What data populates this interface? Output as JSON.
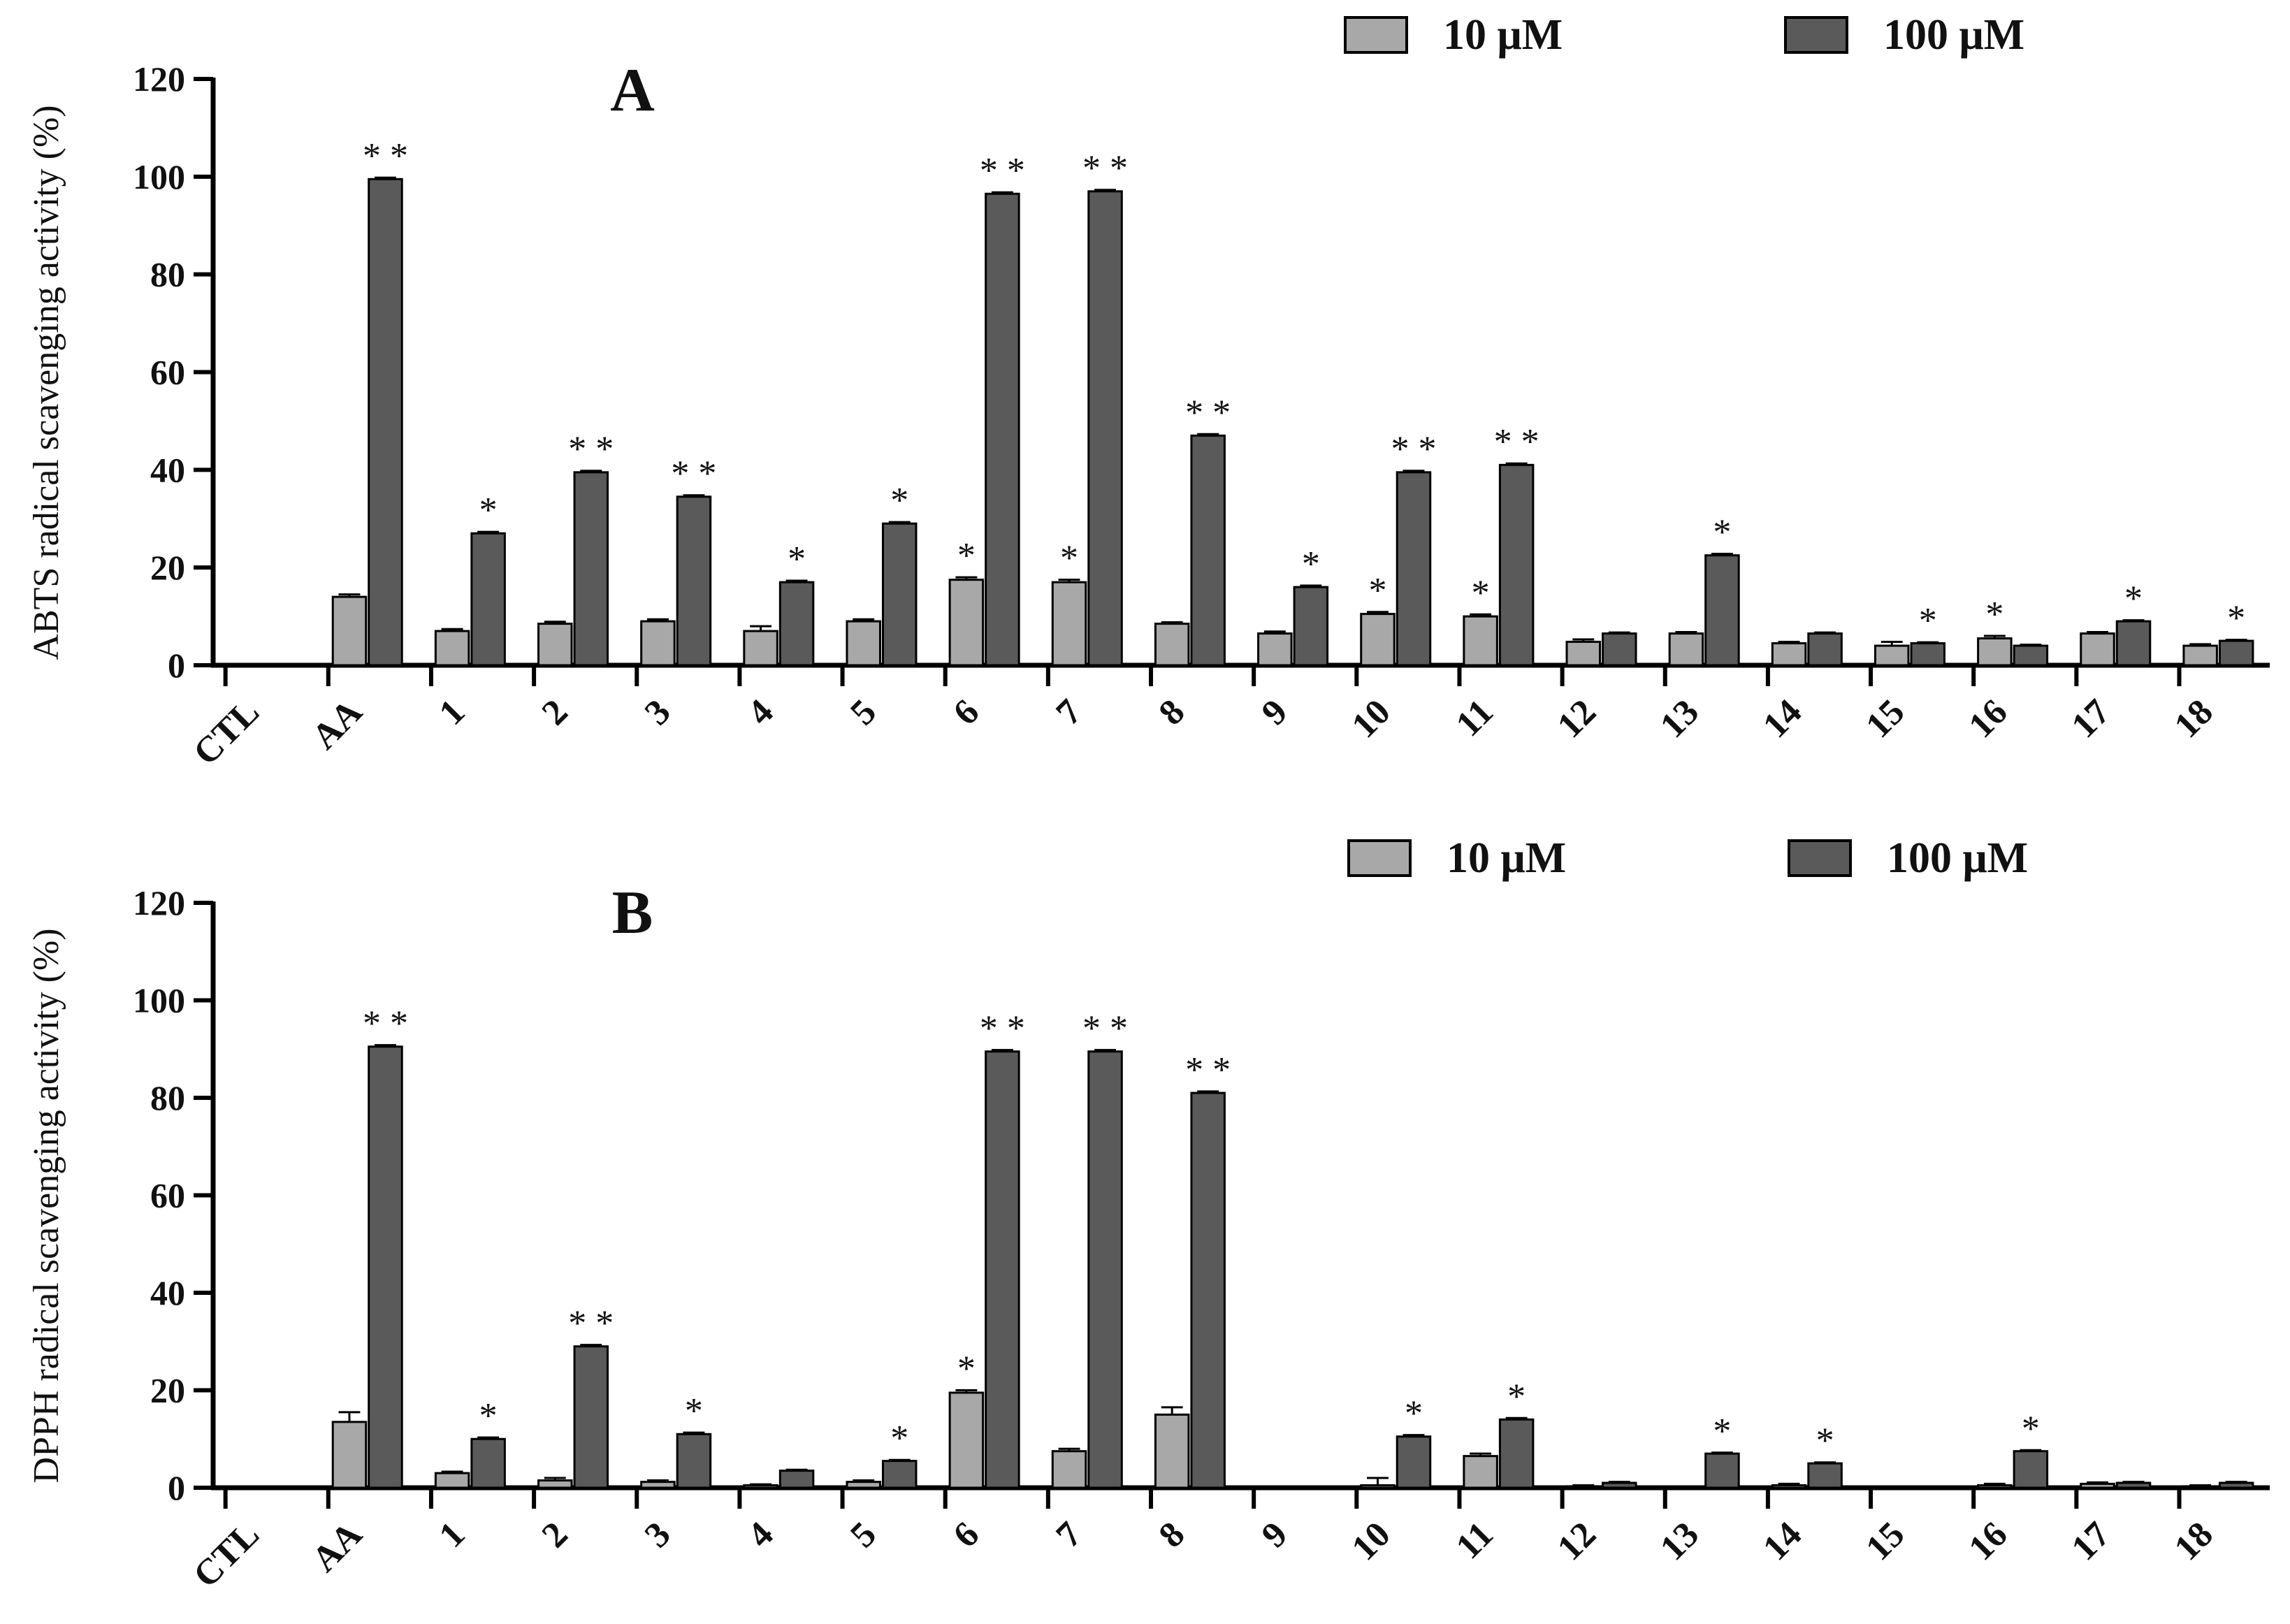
{
  "colors": {
    "low": "#a8a8a8",
    "high": "#5a5a5a",
    "axis": "#000000",
    "errorbar": "#000000"
  },
  "legend": [
    {
      "label": "10 μM",
      "color": "#a8a8a8"
    },
    {
      "label": "100 μM",
      "color": "#5a5a5a"
    }
  ],
  "chart_data": [
    {
      "type": "bar",
      "panel": "A",
      "ylabel": "ABTS radical scavenging activity (%)",
      "ylim": [
        0,
        120
      ],
      "yticks": [
        "0",
        "20",
        "40",
        "60",
        "80",
        "100",
        "120"
      ],
      "legend_position": "top-right",
      "grid": false,
      "categories": [
        "CTL",
        "AA",
        "1",
        "2",
        "3",
        "4",
        "5",
        "6",
        "7",
        "8",
        "9",
        "10",
        "11",
        "12",
        "13",
        "14",
        "15",
        "16",
        "17",
        "18"
      ],
      "series": [
        {
          "name": "10 μM",
          "values": [
            0,
            14,
            7,
            8.5,
            9,
            7,
            9,
            17.5,
            17,
            8.5,
            6.5,
            10.5,
            10,
            4.8,
            6.5,
            4.5,
            4,
            5.5,
            6.5,
            4
          ],
          "errors": [
            0,
            0.5,
            0.4,
            0.4,
            0.4,
            1,
            0.4,
            0.5,
            0.5,
            0.3,
            0.4,
            0.4,
            0.4,
            0.5,
            0.3,
            0.3,
            0.8,
            0.5,
            0.3,
            0.3
          ],
          "significance": [
            "",
            "",
            "",
            "",
            "",
            "",
            "",
            "*",
            "*",
            "",
            "",
            "*",
            "*",
            "",
            "",
            "",
            "",
            "*",
            "",
            ""
          ]
        },
        {
          "name": "100 μM",
          "values": [
            0,
            99.5,
            27,
            39.5,
            34.5,
            17,
            29,
            96.5,
            97,
            47,
            16,
            39.5,
            41,
            6.5,
            22.5,
            6.5,
            4.5,
            4,
            9,
            5
          ],
          "errors": [
            0,
            0.3,
            0.3,
            0.3,
            0.3,
            0.3,
            0.3,
            0.3,
            0.3,
            0.3,
            0.3,
            0.3,
            0.3,
            0.2,
            0.3,
            0.2,
            0.2,
            0.2,
            0.2,
            0.2
          ],
          "significance": [
            "",
            "* *",
            "*",
            "* *",
            "* *",
            "*",
            "*",
            "* *",
            "* *",
            "* *",
            "*",
            "* *",
            "* *",
            "",
            "*",
            "",
            "*",
            "",
            "*",
            "*"
          ]
        }
      ]
    },
    {
      "type": "bar",
      "panel": "B",
      "ylabel": "DPPH radical scavenging activity (%)",
      "ylim": [
        0,
        120
      ],
      "yticks": [
        "0",
        "20",
        "40",
        "60",
        "80",
        "100",
        "120"
      ],
      "legend_position": "top-right",
      "grid": false,
      "categories": [
        "CTL",
        "AA",
        "1",
        "2",
        "3",
        "4",
        "5",
        "6",
        "7",
        "8",
        "9",
        "10",
        "11",
        "12",
        "13",
        "14",
        "15",
        "16",
        "17",
        "18"
      ],
      "series": [
        {
          "name": "10 μM",
          "values": [
            0,
            13.5,
            3,
            1.5,
            1.2,
            0.5,
            1.2,
            19.5,
            7.5,
            15,
            0,
            0.5,
            6.5,
            0.3,
            0,
            0.5,
            0,
            0.5,
            0.8,
            0.3
          ],
          "errors": [
            0,
            2,
            0.3,
            0.5,
            0.3,
            0.2,
            0.3,
            0.5,
            0.5,
            1.5,
            0,
            1.5,
            0.5,
            0.2,
            0,
            0.3,
            0,
            0.3,
            0.3,
            0.2
          ],
          "significance": [
            "",
            "",
            "",
            "",
            "",
            "",
            "",
            "*",
            "",
            "",
            "",
            "",
            "",
            "",
            "",
            "",
            "",
            "",
            "",
            ""
          ]
        },
        {
          "name": "100 μM",
          "values": [
            0,
            90.5,
            10,
            29,
            11,
            3.5,
            5.5,
            89.5,
            89.5,
            81,
            0,
            10.5,
            14,
            1,
            7,
            5,
            0,
            7.5,
            1,
            1
          ],
          "errors": [
            0,
            0.3,
            0.3,
            0.3,
            0.3,
            0.2,
            0.2,
            0.3,
            0.3,
            0.3,
            0,
            0.3,
            0.3,
            0.2,
            0.2,
            0.2,
            0,
            0.2,
            0.2,
            0.2
          ],
          "significance": [
            "",
            "* *",
            "*",
            "* *",
            "*",
            "",
            "*",
            "* *",
            "* *",
            "* *",
            "",
            "*",
            "*",
            "",
            "*",
            "*",
            "",
            "*",
            "",
            ""
          ]
        }
      ]
    }
  ]
}
